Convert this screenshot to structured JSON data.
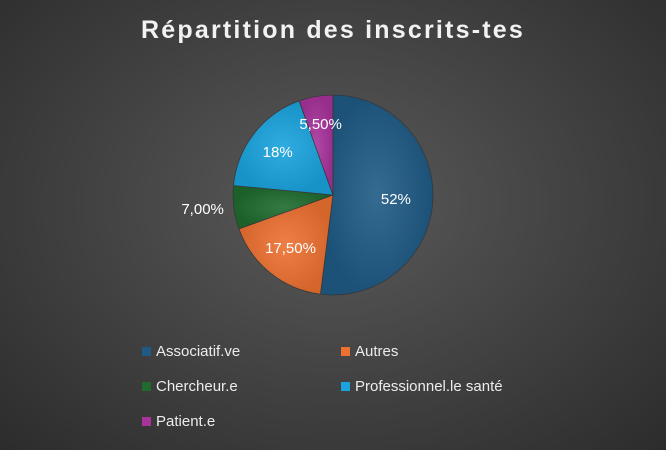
{
  "chart_data": {
    "type": "pie",
    "title": "Répartition des inscrits-tes",
    "slices": [
      {
        "label": "Associatif.ve",
        "value": 52,
        "display": "52%",
        "color": "#1f5a85"
      },
      {
        "label": "Autres",
        "value": 17.5,
        "display": "17,50%",
        "color": "#ec7030"
      },
      {
        "label": "Chercheur.e",
        "value": 7.0,
        "display": "7,00%",
        "color": "#1f6b2e"
      },
      {
        "label": "Professionnel.le santé",
        "value": 18,
        "display": "18%",
        "color": "#1aa3de"
      },
      {
        "label": "Patient.e",
        "value": 5.5,
        "display": "5,50%",
        "color": "#a8339c"
      }
    ],
    "legend_position": "bottom",
    "start_angle_deg": 0,
    "direction": "clockwise"
  }
}
